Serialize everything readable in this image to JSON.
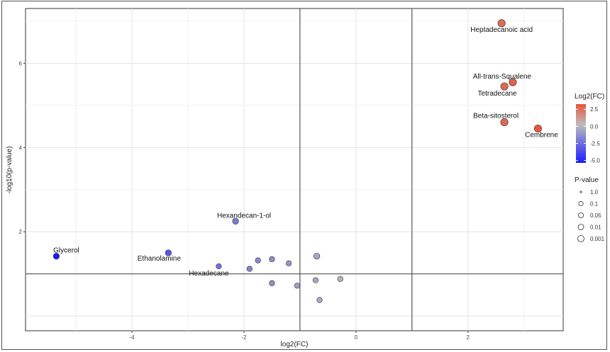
{
  "chart_data": {
    "type": "scatter",
    "title": "",
    "xlabel": "log2(FC)",
    "ylabel": "-log10(p-value)",
    "xlim": [
      -5.9,
      3.7
    ],
    "ylim": [
      -0.35,
      7.3
    ],
    "xticks": [
      -4,
      -2,
      0,
      2
    ],
    "xtick_labels": [
      "-4",
      "-2",
      "0",
      "2"
    ],
    "yticks": [
      2,
      4,
      6
    ],
    "ytick_labels": [
      "2",
      "4",
      "6"
    ],
    "grid": true,
    "thresholds": {
      "x": [
        -1,
        1
      ],
      "y": [
        1
      ]
    },
    "points": [
      {
        "x": 2.6,
        "y": 6.95,
        "label": "Heptadecanoic acid"
      },
      {
        "x": 2.8,
        "y": 5.55,
        "label": "All-trans-Squalene"
      },
      {
        "x": 2.65,
        "y": 5.45,
        "label": "Tetradecane"
      },
      {
        "x": 2.65,
        "y": 4.6,
        "label": "Beta-sitosterol"
      },
      {
        "x": 3.25,
        "y": 4.45,
        "label": "Cembrene"
      },
      {
        "x": -2.15,
        "y": 2.25,
        "label": "Hexandecan-1-ol"
      },
      {
        "x": -5.35,
        "y": 1.42,
        "label": "Glycerol"
      },
      {
        "x": -3.35,
        "y": 1.5,
        "label": "Ethanolamine"
      },
      {
        "x": -2.45,
        "y": 1.18,
        "label": "Hexadecane"
      },
      {
        "x": -1.9,
        "y": 1.12,
        "label": ""
      },
      {
        "x": -1.75,
        "y": 1.32,
        "label": ""
      },
      {
        "x": -1.5,
        "y": 1.35,
        "label": ""
      },
      {
        "x": -1.2,
        "y": 1.25,
        "label": ""
      },
      {
        "x": -1.5,
        "y": 0.78,
        "label": ""
      },
      {
        "x": -1.05,
        "y": 0.72,
        "label": ""
      },
      {
        "x": -0.7,
        "y": 1.42,
        "label": ""
      },
      {
        "x": -0.72,
        "y": 0.85,
        "label": ""
      },
      {
        "x": -0.65,
        "y": 0.38,
        "label": ""
      },
      {
        "x": -0.28,
        "y": 0.88,
        "label": ""
      }
    ],
    "legend": {
      "position": "right",
      "color": {
        "title": "Log2(FC)",
        "ticks": [
          "2.5",
          "0.0",
          "-2.5",
          "-5.0"
        ],
        "values": [
          2.5,
          0,
          -2.5,
          -5
        ],
        "colors": {
          "high": "#e8553c",
          "mid": "#bdbdbd",
          "low": "#1a1aff"
        }
      },
      "size": {
        "title": "P-value",
        "entries": [
          "1.0",
          "0.1",
          "0.05",
          "0.01",
          "0.001"
        ]
      }
    }
  }
}
